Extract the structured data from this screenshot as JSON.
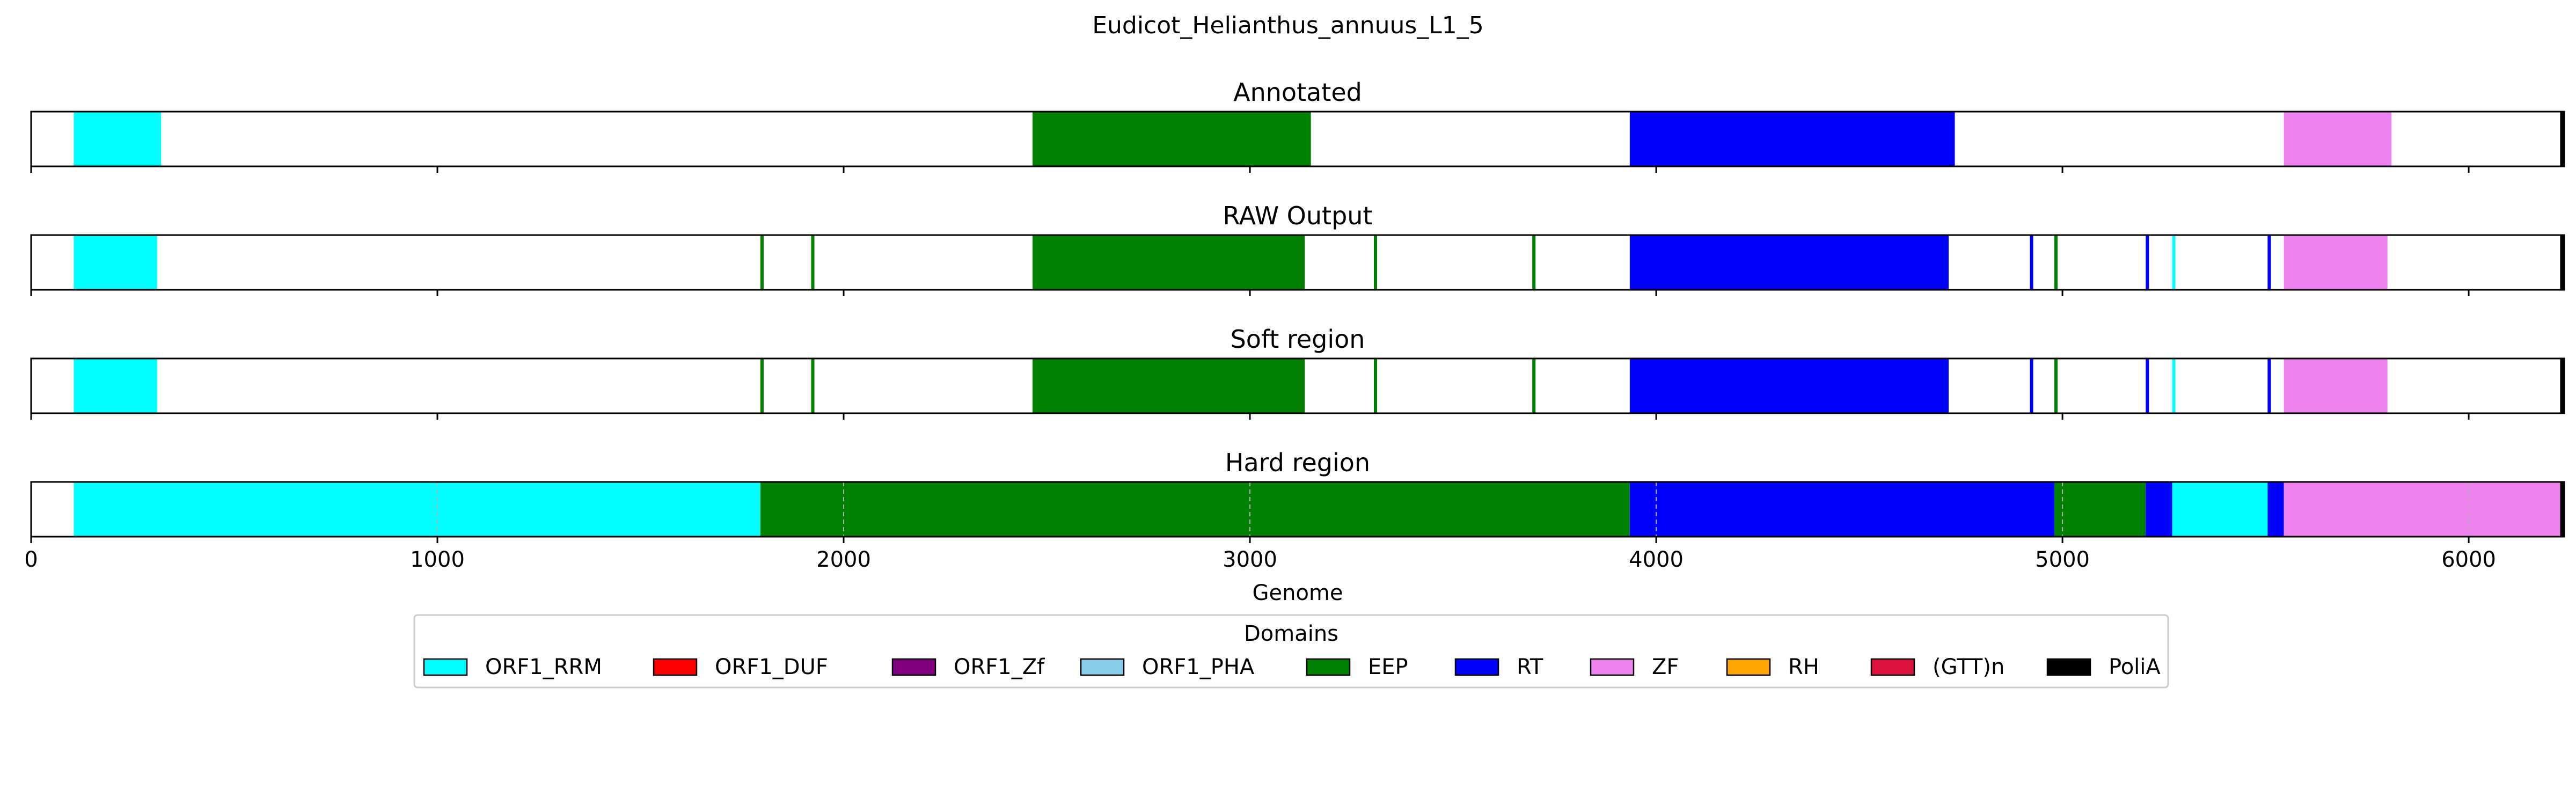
{
  "figure_title": "Eudicot_Helianthus_annuus_L1_5",
  "colors": {
    "ORF1_RRM": "#00ffff",
    "ORF1_DUF": "#ff0000",
    "ORF1_Zf": "#800080",
    "ORF1_PHA": "#87ceeb",
    "EEP": "#008000",
    "RT": "#0000ff",
    "ZF": "#ee82ee",
    "RH": "#ffa500",
    "(GTT)n": "#dc143c",
    "PoliA": "#000000"
  },
  "chart_data": {
    "type": "genome-track",
    "title": "Eudicot_Helianthus_annuus_L1_5",
    "xlabel": "Genome",
    "xlim": [
      0,
      6235
    ],
    "xticks": [
      0,
      1000,
      2000,
      3000,
      4000,
      5000,
      6000
    ],
    "grid": "x, dashed, hard region only",
    "panels": [
      {
        "title": "Annotated",
        "segments": [
          {
            "start": 105,
            "end": 320,
            "domain": "ORF1_RRM"
          },
          {
            "start": 2465,
            "end": 3150,
            "domain": "EEP"
          },
          {
            "start": 3935,
            "end": 4735,
            "domain": "RT"
          },
          {
            "start": 5545,
            "end": 5810,
            "domain": "ZF"
          },
          {
            "start": 6225,
            "end": 6235,
            "domain": "PoliA"
          }
        ]
      },
      {
        "title": "RAW Output",
        "segments": [
          {
            "start": 105,
            "end": 310,
            "domain": "ORF1_RRM"
          },
          {
            "start": 1795,
            "end": 1803,
            "domain": "EEP"
          },
          {
            "start": 1920,
            "end": 1928,
            "domain": "EEP"
          },
          {
            "start": 2465,
            "end": 3135,
            "domain": "EEP"
          },
          {
            "start": 3305,
            "end": 3313,
            "domain": "EEP"
          },
          {
            "start": 3695,
            "end": 3703,
            "domain": "EEP"
          },
          {
            "start": 3935,
            "end": 4720,
            "domain": "RT"
          },
          {
            "start": 4920,
            "end": 4928,
            "domain": "RT"
          },
          {
            "start": 4980,
            "end": 4988,
            "domain": "EEP"
          },
          {
            "start": 5205,
            "end": 5213,
            "domain": "RT"
          },
          {
            "start": 5270,
            "end": 5278,
            "domain": "ORF1_RRM"
          },
          {
            "start": 5505,
            "end": 5513,
            "domain": "RT"
          },
          {
            "start": 5545,
            "end": 5800,
            "domain": "ZF"
          },
          {
            "start": 6225,
            "end": 6235,
            "domain": "PoliA"
          }
        ]
      },
      {
        "title": "Soft region",
        "segments": [
          {
            "start": 105,
            "end": 310,
            "domain": "ORF1_RRM"
          },
          {
            "start": 1795,
            "end": 1803,
            "domain": "EEP"
          },
          {
            "start": 1920,
            "end": 1928,
            "domain": "EEP"
          },
          {
            "start": 2465,
            "end": 3135,
            "domain": "EEP"
          },
          {
            "start": 3305,
            "end": 3313,
            "domain": "EEP"
          },
          {
            "start": 3695,
            "end": 3703,
            "domain": "EEP"
          },
          {
            "start": 3935,
            "end": 4720,
            "domain": "RT"
          },
          {
            "start": 4920,
            "end": 4928,
            "domain": "RT"
          },
          {
            "start": 4980,
            "end": 4988,
            "domain": "EEP"
          },
          {
            "start": 5205,
            "end": 5213,
            "domain": "RT"
          },
          {
            "start": 5270,
            "end": 5278,
            "domain": "ORF1_RRM"
          },
          {
            "start": 5505,
            "end": 5513,
            "domain": "RT"
          },
          {
            "start": 5545,
            "end": 5800,
            "domain": "ZF"
          },
          {
            "start": 6225,
            "end": 6235,
            "domain": "PoliA"
          }
        ]
      },
      {
        "title": "Hard region",
        "segments": [
          {
            "start": 105,
            "end": 1795,
            "domain": "ORF1_RRM"
          },
          {
            "start": 1795,
            "end": 3935,
            "domain": "EEP"
          },
          {
            "start": 3935,
            "end": 4980,
            "domain": "RT"
          },
          {
            "start": 4980,
            "end": 5205,
            "domain": "EEP"
          },
          {
            "start": 5205,
            "end": 5270,
            "domain": "RT"
          },
          {
            "start": 5270,
            "end": 5505,
            "domain": "ORF1_RRM"
          },
          {
            "start": 5505,
            "end": 5545,
            "domain": "RT"
          },
          {
            "start": 5545,
            "end": 6225,
            "domain": "ZF"
          },
          {
            "start": 6225,
            "end": 6235,
            "domain": "PoliA"
          }
        ]
      }
    ],
    "legend": {
      "title": "Domains",
      "placement": "bottom-center",
      "entries": [
        "ORF1_RRM",
        "ORF1_DUF",
        "ORF1_Zf",
        "ORF1_PHA",
        "EEP",
        "RT",
        "ZF",
        "RH",
        "(GTT)n",
        "PoliA"
      ]
    }
  }
}
